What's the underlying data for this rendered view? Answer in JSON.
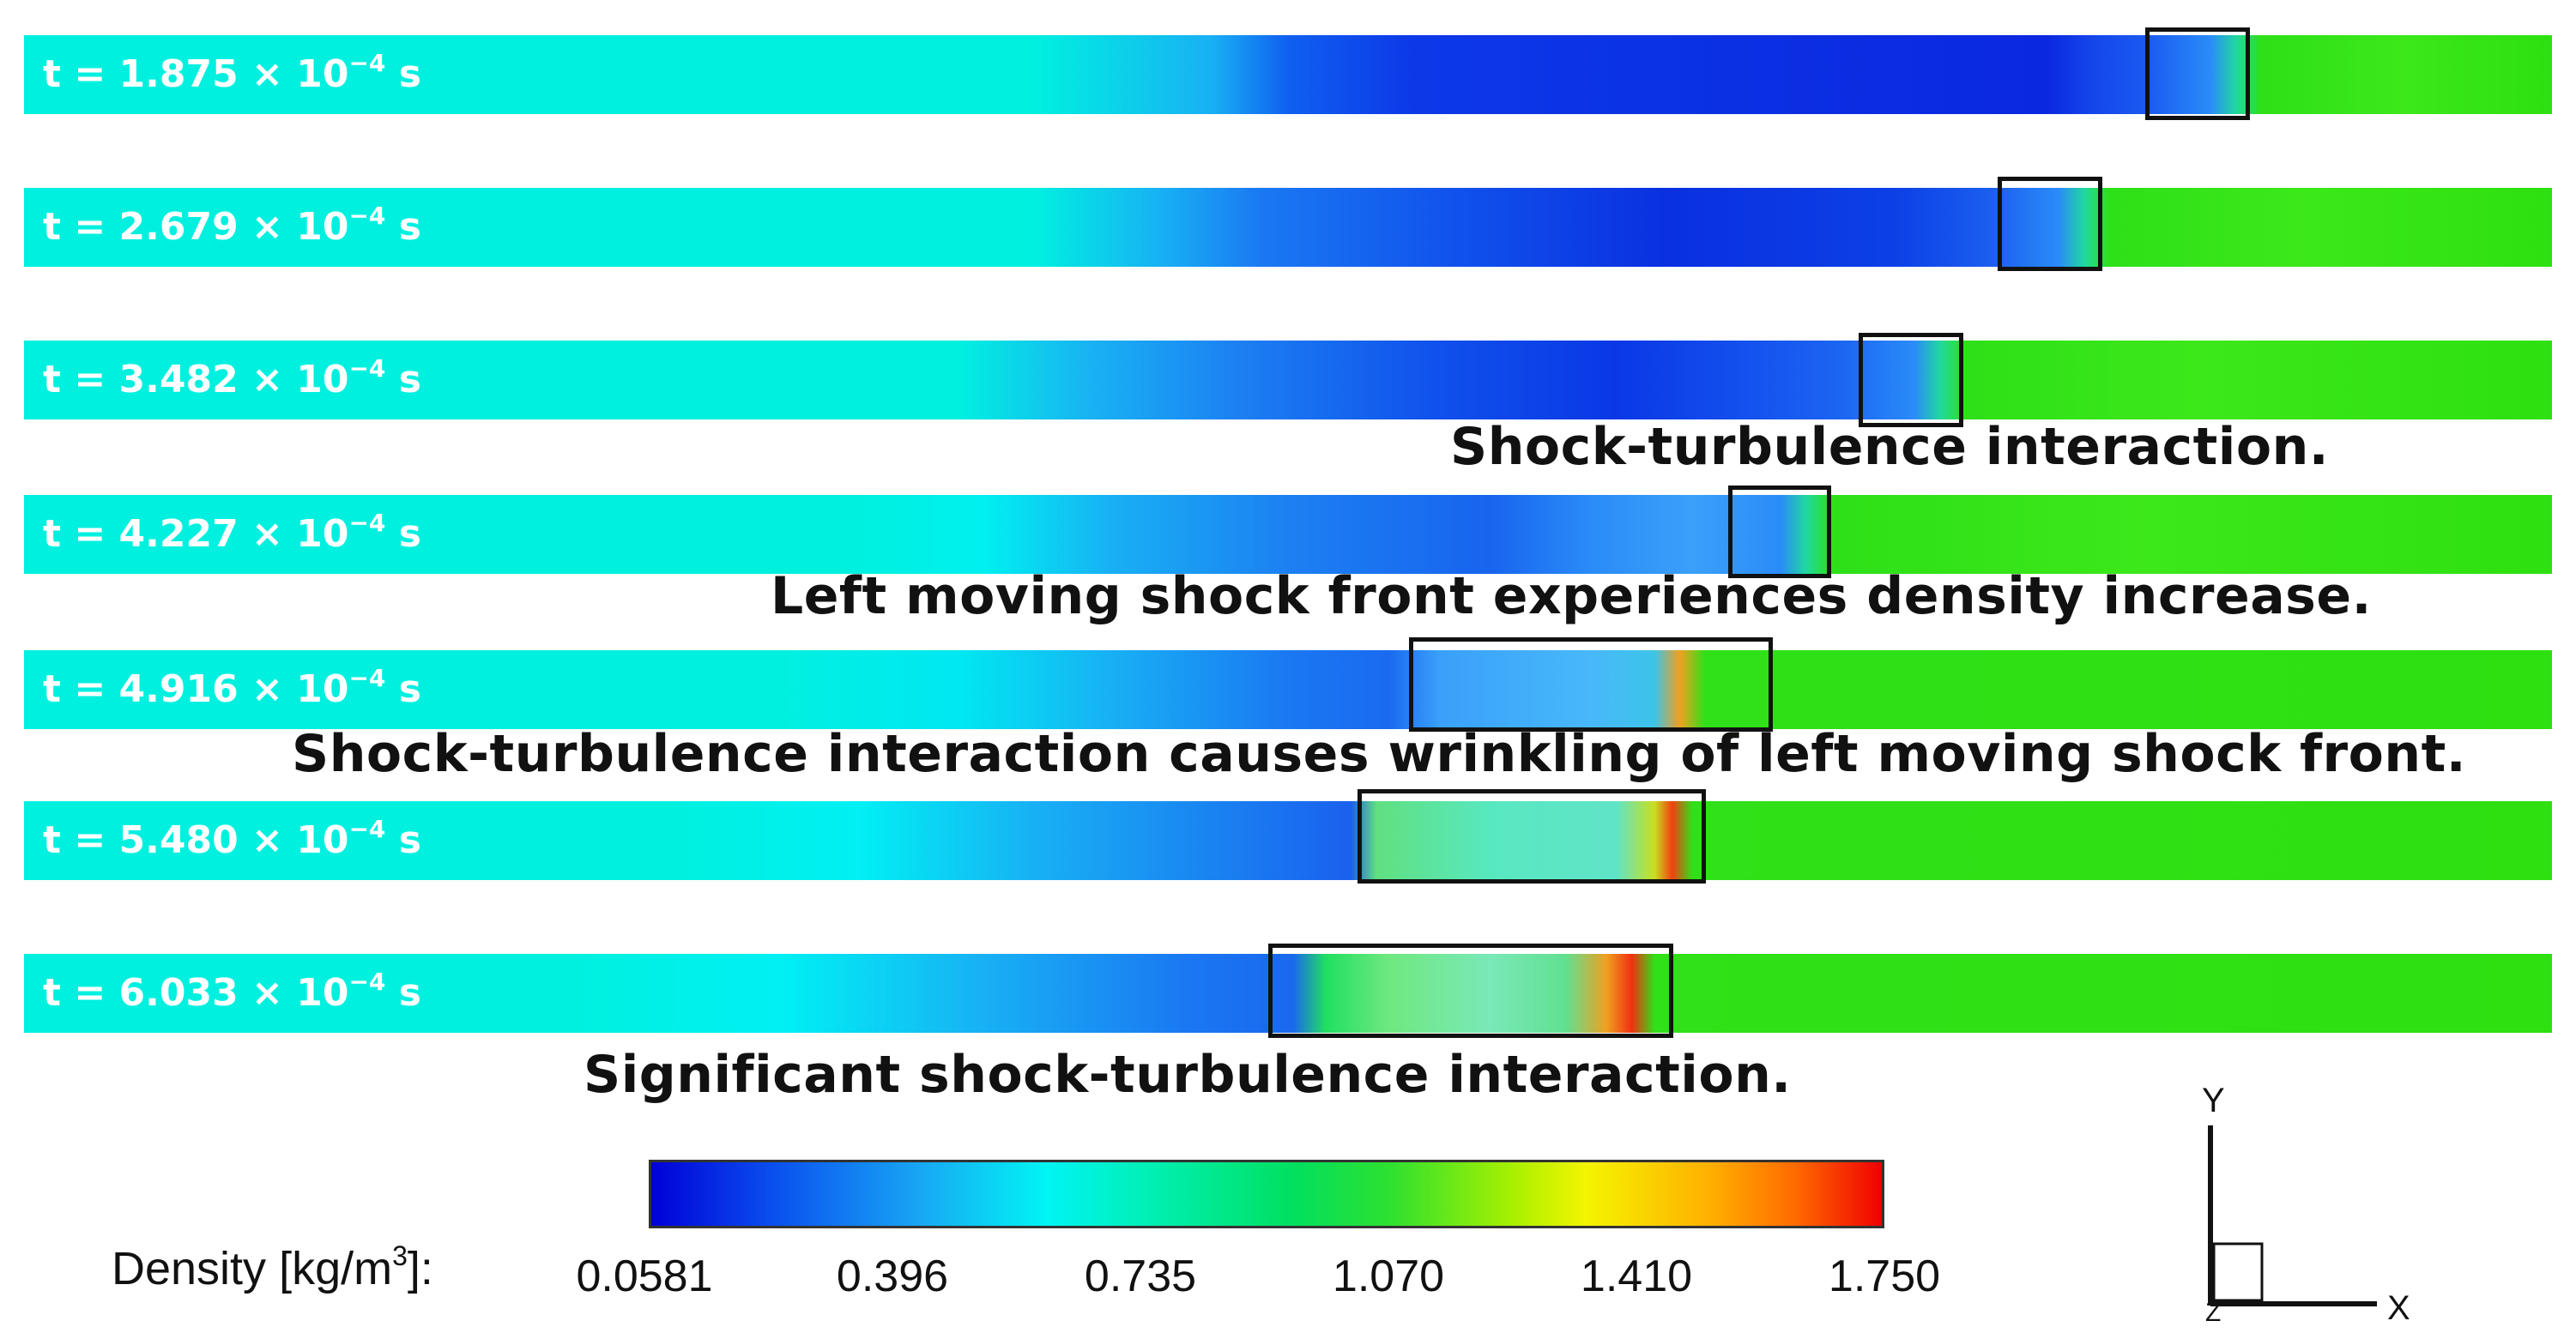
{
  "frames": [
    {
      "time_value": "t = 1.875 × 10",
      "time_exp": "−4",
      "time_unit": " s"
    },
    {
      "time_value": "t = 2.679 × 10",
      "time_exp": "−4",
      "time_unit": " s"
    },
    {
      "time_value": "t = 3.482 × 10",
      "time_exp": "−4",
      "time_unit": " s"
    },
    {
      "time_value": "t = 4.227 × 10",
      "time_exp": "−4",
      "time_unit": " s"
    },
    {
      "time_value": "t = 4.916 × 10",
      "time_exp": "−4",
      "time_unit": " s"
    },
    {
      "time_value": "t = 5.480 × 10",
      "time_exp": "−4",
      "time_unit": " s"
    },
    {
      "time_value": "t = 6.033 × 10",
      "time_exp": "−4",
      "time_unit": " s"
    }
  ],
  "annotations": [
    "Shock-turbulence interaction.",
    "Left moving shock front experiences density increase.",
    "Shock-turbulence interaction causes wrinkling of left moving shock front.",
    "Significant shock-turbulence interaction."
  ],
  "colorbar": {
    "title_main": "Density [kg/m",
    "title_exp": "3",
    "title_end": "]:",
    "ticks": [
      "0.0581",
      "0.396",
      "0.735",
      "1.070",
      "1.410",
      "1.750"
    ]
  },
  "axes_triad": {
    "y_label": "Y",
    "x_label": "X",
    "z_label": "Z"
  },
  "colors": {
    "ambient_cyan": "#00f0e0",
    "low_density_blue": "#1a3ae0",
    "high_density_green": "#2ee010",
    "highlight_box": "#111111"
  }
}
